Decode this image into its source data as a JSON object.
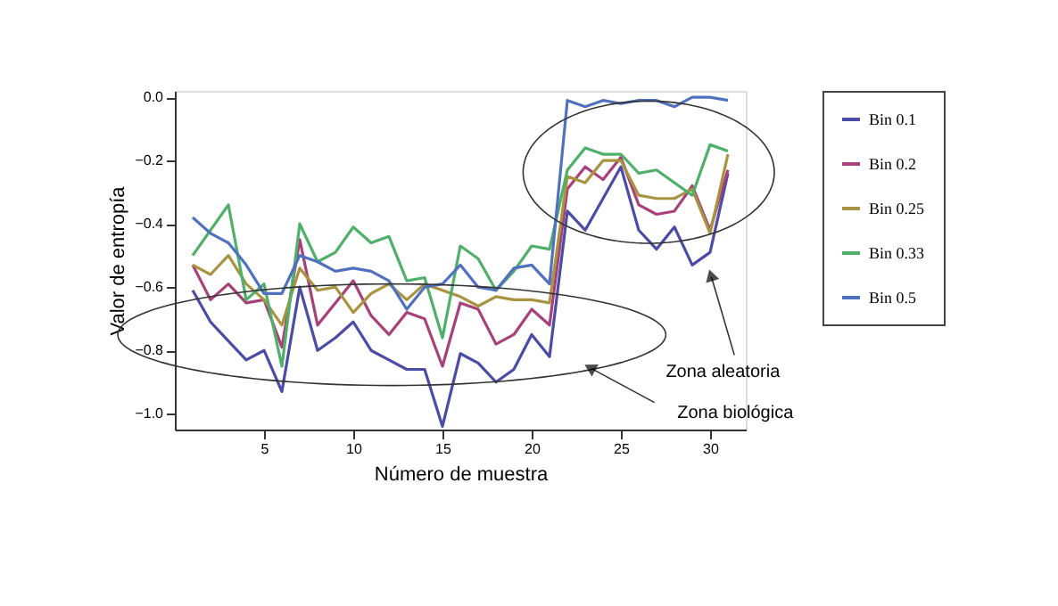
{
  "chart_data": {
    "type": "line",
    "xlabel": "Número de muestra",
    "ylabel": "Valor de entropía",
    "x": [
      1,
      2,
      3,
      4,
      5,
      6,
      7,
      8,
      9,
      10,
      11,
      12,
      13,
      14,
      15,
      16,
      17,
      18,
      19,
      20,
      21,
      22,
      23,
      24,
      25,
      26,
      27,
      28,
      29,
      30,
      31
    ],
    "xlim": [
      0,
      32
    ],
    "xticks": [
      5,
      10,
      15,
      20,
      25,
      30
    ],
    "ylim": [
      -1.05,
      0.02
    ],
    "yticks": [
      {
        "value": 0,
        "label": "0.0"
      },
      {
        "value": -0.2,
        "label": "−0.2"
      },
      {
        "value": -0.4,
        "label": "−0.4"
      },
      {
        "value": -0.6,
        "label": "−0.6"
      },
      {
        "value": -0.8,
        "label": "−0.8"
      },
      {
        "value": -1.0,
        "label": "−1.0"
      }
    ],
    "grid": false,
    "legend": "right",
    "marker": "none",
    "line_style": "solid",
    "series": [
      {
        "name": "Bin 0.1",
        "color": "#4b4ba8",
        "values": [
          -0.61,
          -0.71,
          -0.77,
          -0.83,
          -0.8,
          -0.93,
          -0.6,
          -0.8,
          -0.76,
          -0.71,
          -0.8,
          -0.83,
          -0.86,
          -0.86,
          -1.04,
          -0.81,
          -0.84,
          -0.9,
          -0.86,
          -0.75,
          -0.82,
          -0.36,
          -0.42,
          -0.32,
          -0.22,
          -0.42,
          -0.48,
          -0.41,
          -0.53,
          -0.49,
          -0.24
        ]
      },
      {
        "name": "Bin 0.2",
        "color": "#a8407a",
        "values": [
          -0.53,
          -0.64,
          -0.59,
          -0.65,
          -0.64,
          -0.79,
          -0.45,
          -0.72,
          -0.65,
          -0.58,
          -0.69,
          -0.75,
          -0.68,
          -0.7,
          -0.85,
          -0.65,
          -0.67,
          -0.78,
          -0.75,
          -0.67,
          -0.72,
          -0.29,
          -0.22,
          -0.26,
          -0.19,
          -0.34,
          -0.37,
          -0.36,
          -0.28,
          -0.42,
          -0.23
        ]
      },
      {
        "name": "Bin 0.25",
        "color": "#a89440",
        "values": [
          -0.53,
          -0.56,
          -0.5,
          -0.59,
          -0.64,
          -0.72,
          -0.54,
          -0.61,
          -0.6,
          -0.68,
          -0.62,
          -0.59,
          -0.64,
          -0.59,
          -0.61,
          -0.63,
          -0.66,
          -0.63,
          -0.64,
          -0.64,
          -0.65,
          -0.25,
          -0.27,
          -0.2,
          -0.2,
          -0.31,
          -0.32,
          -0.32,
          -0.29,
          -0.43,
          -0.18
        ]
      },
      {
        "name": "Bin 0.33",
        "color": "#4fb06a",
        "values": [
          -0.5,
          -0.42,
          -0.34,
          -0.64,
          -0.59,
          -0.85,
          -0.4,
          -0.52,
          -0.49,
          -0.41,
          -0.46,
          -0.44,
          -0.58,
          -0.57,
          -0.76,
          -0.47,
          -0.51,
          -0.61,
          -0.55,
          -0.47,
          -0.48,
          -0.23,
          -0.16,
          -0.18,
          -0.18,
          -0.24,
          -0.23,
          -0.27,
          -0.31,
          -0.15,
          -0.17
        ]
      },
      {
        "name": "Bin 0.5",
        "color": "#5070c0",
        "values": [
          -0.38,
          -0.43,
          -0.46,
          -0.53,
          -0.62,
          -0.62,
          -0.5,
          -0.52,
          -0.55,
          -0.54,
          -0.55,
          -0.58,
          -0.67,
          -0.6,
          -0.59,
          -0.53,
          -0.6,
          -0.61,
          -0.54,
          -0.53,
          -0.59,
          -0.01,
          -0.03,
          -0.01,
          -0.02,
          -0.01,
          -0.01,
          -0.03,
          0.0,
          0.0,
          -0.01
        ]
      }
    ],
    "annotations": [
      "Zona aleatoria",
      "Zona biológica"
    ]
  }
}
